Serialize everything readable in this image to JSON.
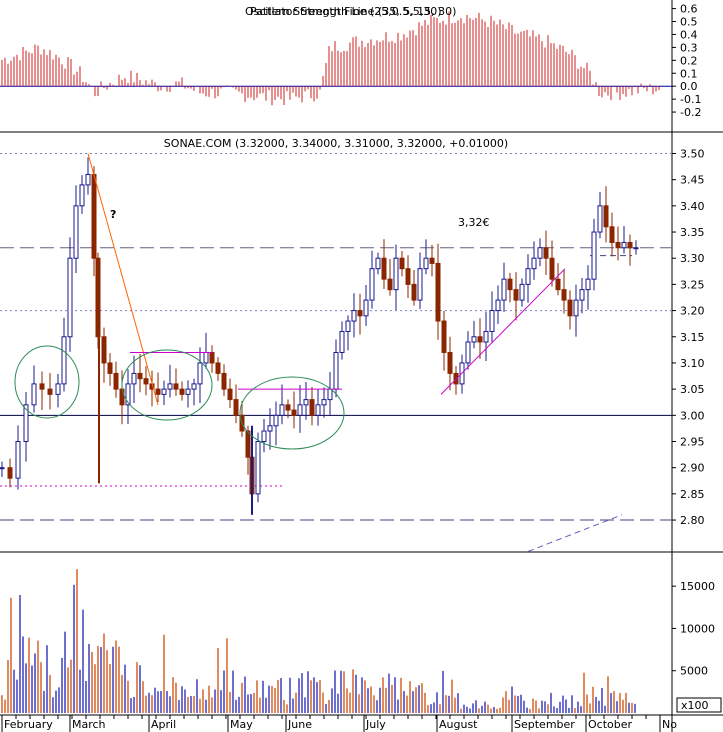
{
  "colors": {
    "up": "#1a1a8c",
    "down": "#8b2500",
    "osc": "#cc2222",
    "vol_a": "#6f6fd0",
    "vol_b": "#e08a60",
    "dash": "#4040a0",
    "magenta": "#cc00cc",
    "orange": "#ff6600",
    "ellipse": "#2e8b57",
    "label": "#666666"
  },
  "chart_data": [
    {
      "type": "bar",
      "panel": "oscillator",
      "title": "Oscillator (overlapping label text)",
      "ylim": [
        -0.3,
        0.62
      ],
      "yticks": [
        "0.6",
        "0.5",
        "0.4",
        "0.3",
        "0.2",
        "0.1",
        "0.0",
        "-0.1",
        "-0.2"
      ],
      "note": "values approximate"
    },
    {
      "type": "candlestick",
      "panel": "price",
      "title": "SONAE.COM (3.32000, 3.34000, 3.31000, 3.32000, +0.01000)",
      "ylim": [
        2.76,
        3.52
      ],
      "yticks": [
        "3.50",
        "3.45",
        "3.40",
        "3.35",
        "3.30",
        "3.25",
        "3.20",
        "3.15",
        "3.10",
        "3.05",
        "3.00",
        "2.95",
        "2.90",
        "2.85",
        "2.80"
      ],
      "annotations": [
        "?",
        "3,32€"
      ],
      "reference_levels": [
        3.5,
        3.32,
        3.2,
        3.0,
        2.86,
        2.8
      ]
    },
    {
      "type": "bar",
      "panel": "volume",
      "ylim": [
        0,
        17500
      ],
      "yticks": [
        "15000",
        "10000",
        "5000"
      ],
      "unit_label": "x100",
      "months": [
        "February",
        "March",
        "April",
        "May",
        "June",
        "July",
        "August",
        "September",
        "October",
        "No"
      ]
    }
  ]
}
